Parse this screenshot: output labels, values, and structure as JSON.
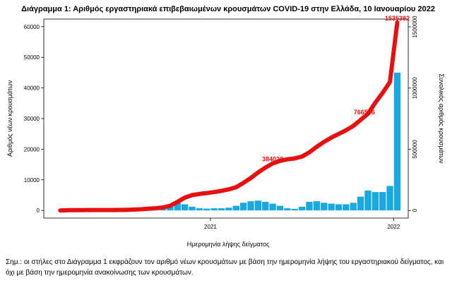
{
  "chart_data": {
    "type": "bar",
    "title": "Διάγραμμα 1: Αριθμός εργαστηριακά επιβεβαιωμένων κρουσμάτων COVID-19 στην Ελλάδα, 10 Ιανουαρίου 2022",
    "x_label": "Ημερομηνία λήψης δείγματος",
    "y_label": "Αριθμός νέων κρουσμάτων",
    "y2_label": "Συνολικός αριθμός κρουσμάτων",
    "x": [
      2020.18,
      2020.22,
      2020.26,
      2020.3,
      2020.34,
      2020.38,
      2020.42,
      2020.46,
      2020.5,
      2020.54,
      2020.58,
      2020.62,
      2020.66,
      2020.7,
      2020.74,
      2020.78,
      2020.82,
      2020.86,
      2020.9,
      2020.94,
      2020.98,
      2021.02,
      2021.06,
      2021.1,
      2021.14,
      2021.18,
      2021.22,
      2021.26,
      2021.3,
      2021.34,
      2021.38,
      2021.42,
      2021.46,
      2021.5,
      2021.54,
      2021.58,
      2021.62,
      2021.66,
      2021.7,
      2021.74,
      2021.78,
      2021.82,
      2021.86,
      2021.9,
      2021.94,
      2021.98,
      2022.02
    ],
    "series": [
      {
        "type": "bar",
        "color": "#19a9e1",
        "values": [
          50,
          80,
          30,
          15,
          10,
          10,
          15,
          30,
          40,
          100,
          200,
          250,
          250,
          350,
          450,
          1200,
          2500,
          2000,
          1200,
          700,
          600,
          700,
          700,
          900,
          1500,
          2500,
          3000,
          3200,
          2800,
          2200,
          1500,
          700,
          500,
          1200,
          2800,
          3000,
          2500,
          2200,
          2000,
          2000,
          2500,
          4500,
          6500,
          6000,
          6000,
          8000,
          45000
        ]
      },
      {
        "type": "line",
        "axis": "y2",
        "color": "#e8100f",
        "values": [
          0,
          2000,
          2600,
          2900,
          3000,
          3100,
          3300,
          3600,
          4000,
          5000,
          7000,
          10000,
          14000,
          18000,
          24000,
          38000,
          70000,
          105000,
          125000,
          135000,
          142000,
          150000,
          160000,
          172000,
          190000,
          225000,
          265000,
          310000,
          350000,
          384028,
          405000,
          418000,
          425000,
          440000,
          475000,
          520000,
          560000,
          595000,
          625000,
          655000,
          690000,
          740000,
          790000,
          880000,
          960000,
          1050000,
          1535382
        ]
      }
    ],
    "annotations": [
      {
        "x": 2021.34,
        "y": 384028
      },
      {
        "x": 2021.84,
        "y": 766566
      },
      {
        "x": 2022.02,
        "y": 1535382
      }
    ],
    "annotation_color": "#e8100f",
    "xlim": [
      2020.09,
      2022.08
    ],
    "xticks": [
      2021,
      2022
    ],
    "ylim": [
      -2500,
      62500
    ],
    "yticks": [
      0,
      10000,
      20000,
      30000,
      40000,
      50000,
      60000
    ],
    "y2lim": [
      -62300,
      1563400
    ],
    "y2ticks": [
      0,
      500000,
      1000000,
      1500000
    ],
    "note": "Σημ.: οι στήλες στο Διάγραμμα 1 εκφράζουν τον αριθμό νέων κρουσμάτων με βάση την ημερομηνία λήψης του εργαστηριακού δείγματος, και όχι με βάση την ημερομηνία ανακοίνωσης των κρουσμάτων."
  }
}
